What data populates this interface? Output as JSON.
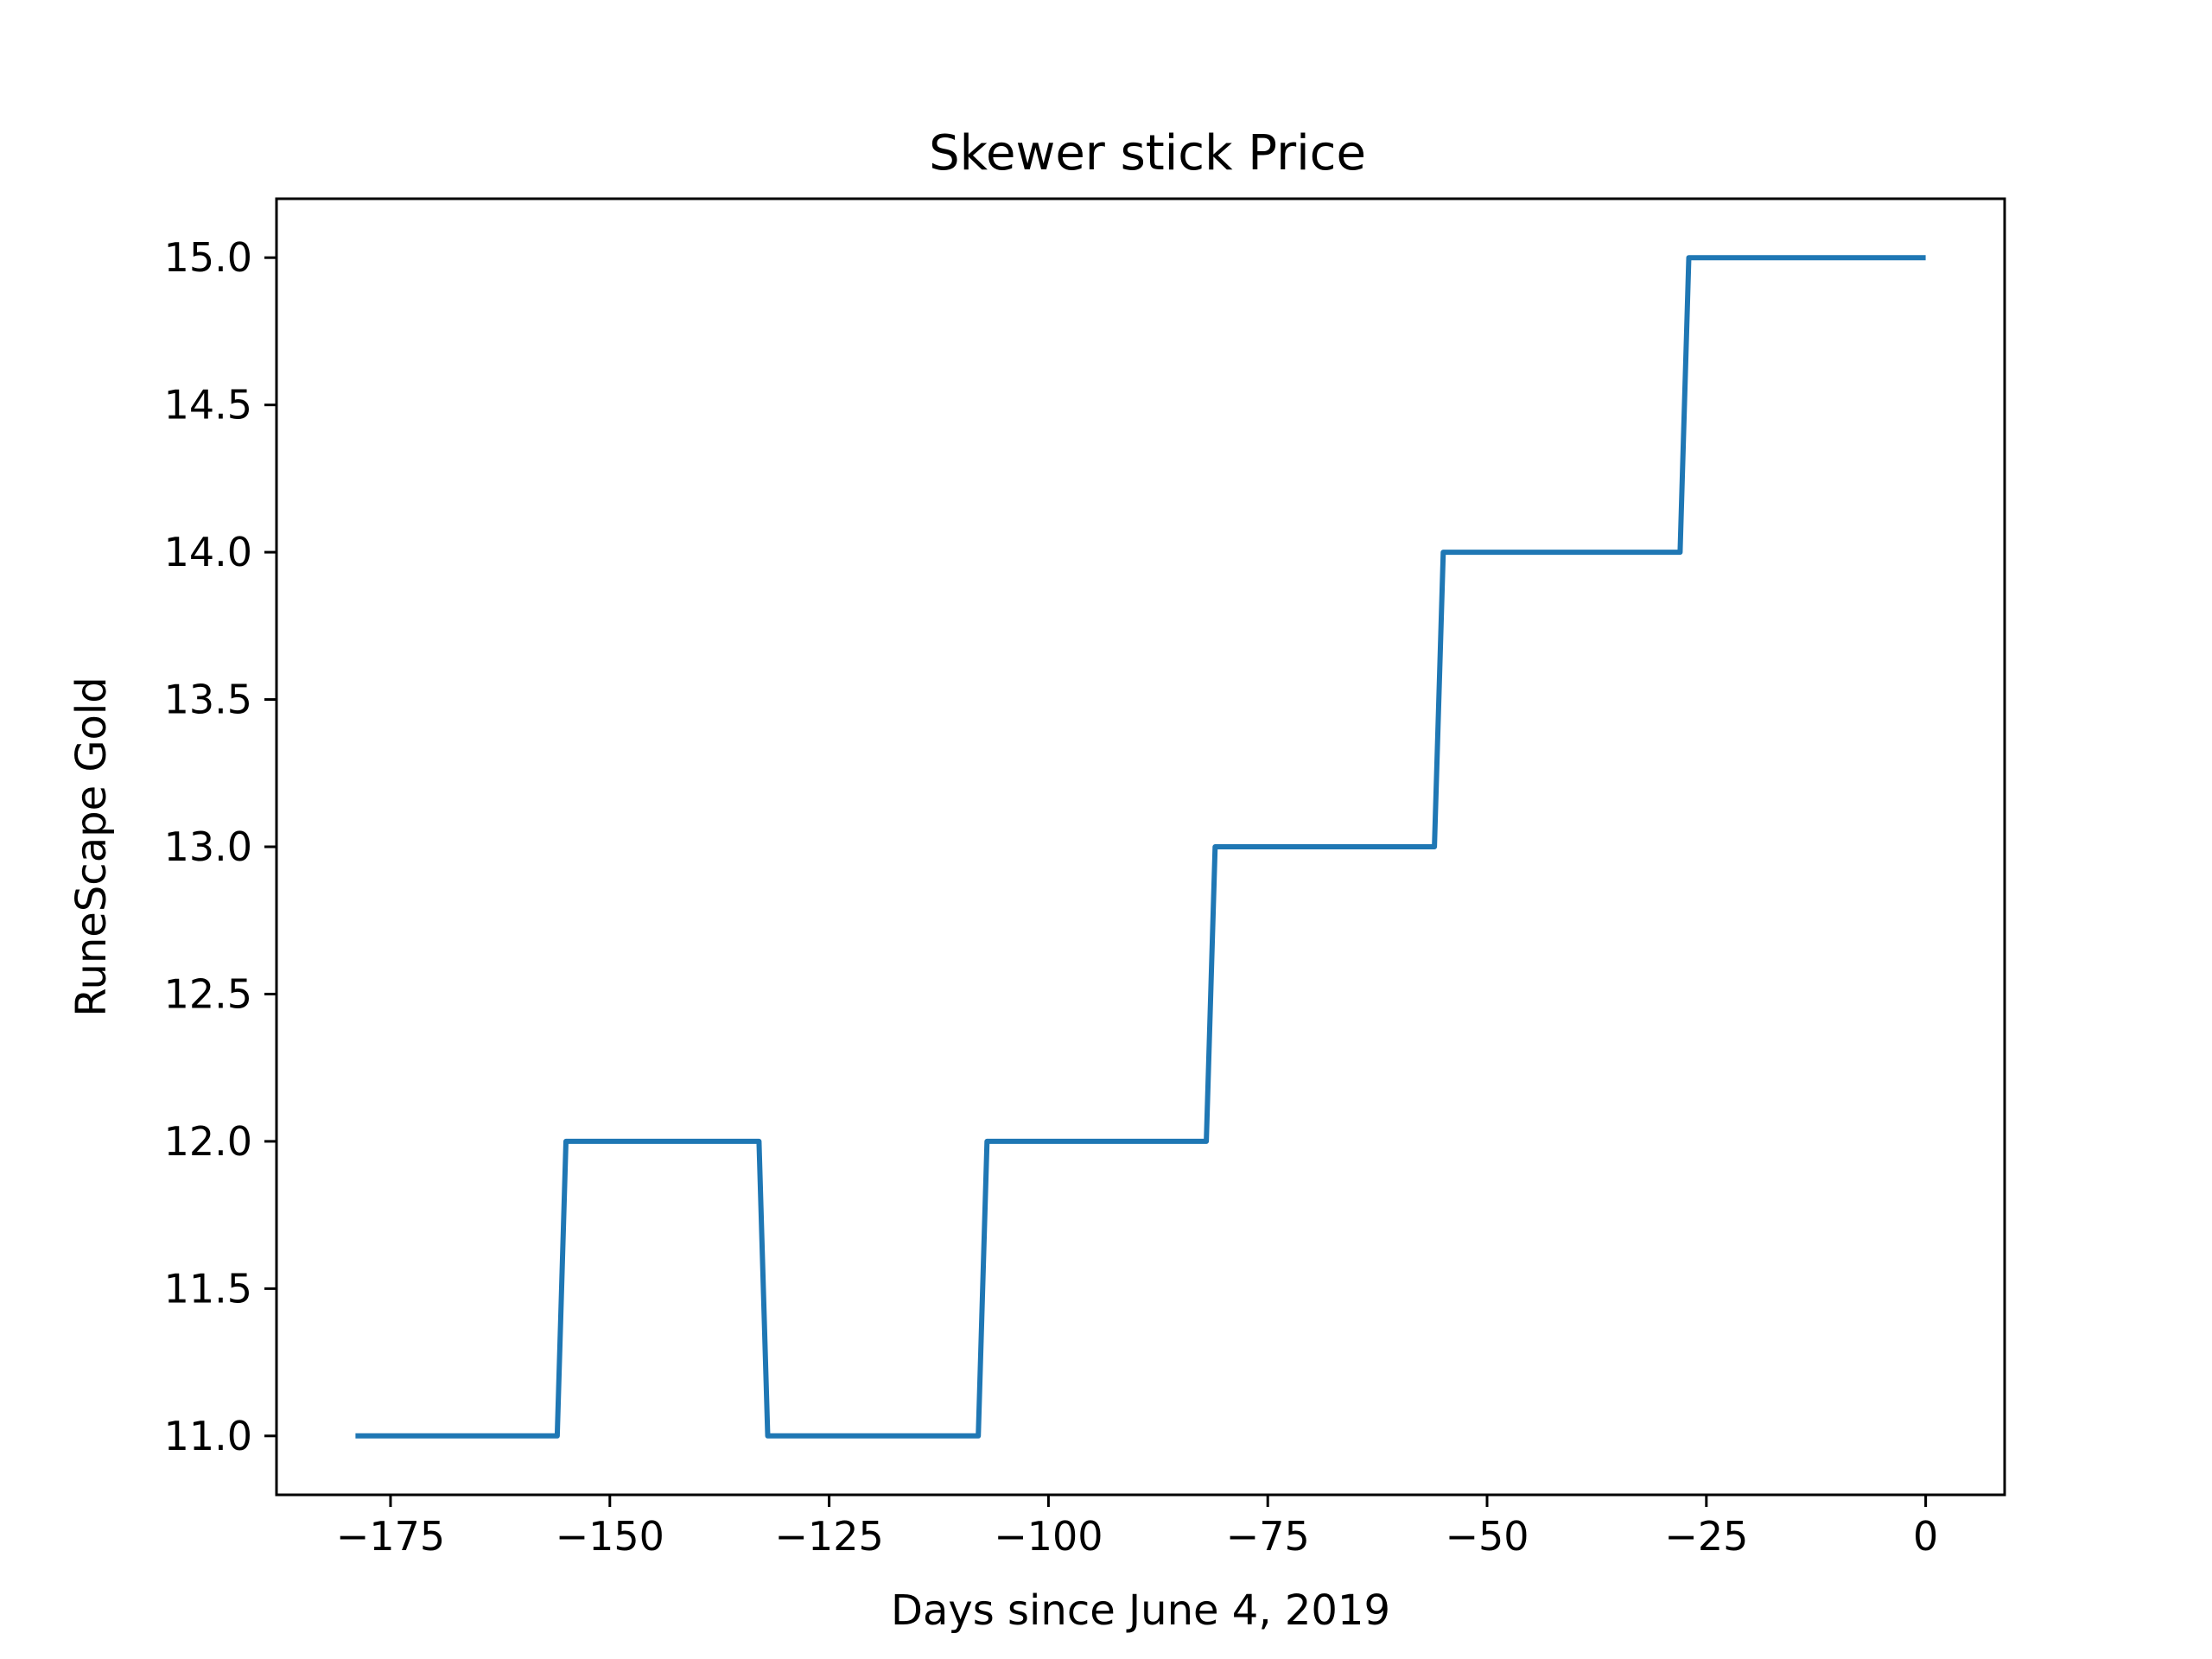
{
  "chart_data": {
    "type": "line",
    "title": "Skewer stick Price",
    "xlabel": "Days since June 4, 2019",
    "ylabel": "RuneScape Gold",
    "xlim": [
      -188,
      9
    ],
    "ylim": [
      10.8,
      15.2
    ],
    "xticks": [
      -175,
      -150,
      -125,
      -100,
      -75,
      -50,
      -25,
      0
    ],
    "xtick_labels": [
      "−175",
      "−150",
      "−125",
      "−100",
      "−75",
      "−50",
      "−25",
      "0"
    ],
    "yticks": [
      11.0,
      11.5,
      12.0,
      12.5,
      13.0,
      13.5,
      14.0,
      14.5,
      15.0
    ],
    "ytick_labels": [
      "11.0",
      "11.5",
      "12.0",
      "12.5",
      "13.0",
      "13.5",
      "14.0",
      "14.5",
      "15.0"
    ],
    "grid": false,
    "series": [
      {
        "color": "#1f77b4",
        "x": [
          -179,
          -156,
          -155,
          -133,
          -132,
          -108,
          -107,
          -82,
          -81,
          -56,
          -55,
          -28,
          -27,
          0
        ],
        "y": [
          11,
          11,
          12,
          12,
          11,
          11,
          12,
          12,
          13,
          13,
          14,
          14,
          15,
          15
        ]
      }
    ]
  }
}
